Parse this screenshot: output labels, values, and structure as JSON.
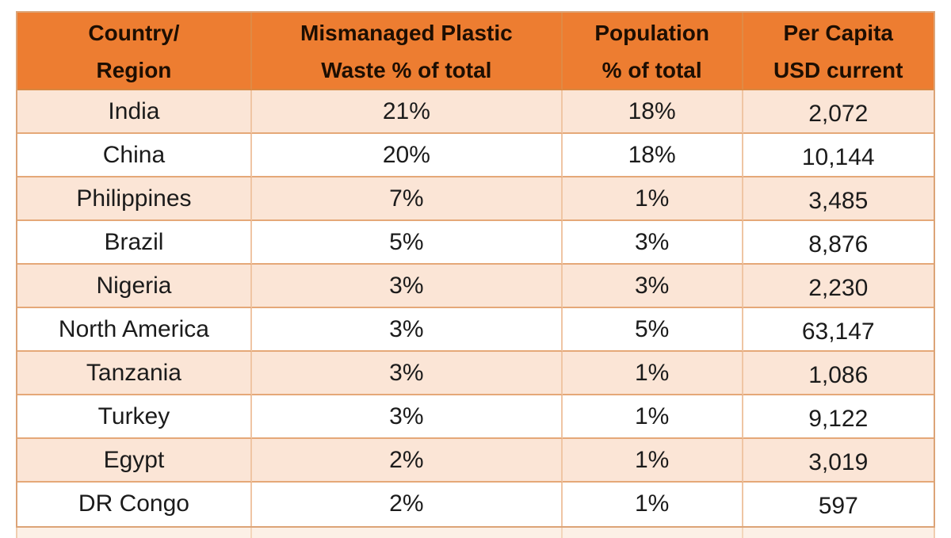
{
  "colors": {
    "header_bg": "#ED7D31",
    "header_text": "#1D0E02",
    "body_text": "#1B1B1B",
    "row_stripe_bg": "#FBE5D6",
    "row_plain_bg": "#FFFFFF",
    "border_horizontal": "#E5A878",
    "border_vertical": "#EFC5A4",
    "outer_border": "#DCA477"
  },
  "table": {
    "headers": [
      {
        "line1": "Country/",
        "line2": "Region"
      },
      {
        "line1": "Mismanaged Plastic",
        "line2": "Waste % of total"
      },
      {
        "line1": "Population",
        "line2": "% of total"
      },
      {
        "line1": "Per Capita",
        "line2": "USD current"
      }
    ],
    "rows": [
      {
        "country": "India",
        "waste": "21%",
        "population": "18%",
        "per_capita": "2,072"
      },
      {
        "country": "China",
        "waste": "20%",
        "population": "18%",
        "per_capita": "10,144"
      },
      {
        "country": "Philippines",
        "waste": "7%",
        "population": "1%",
        "per_capita": "3,485"
      },
      {
        "country": "Brazil",
        "waste": "5%",
        "population": "3%",
        "per_capita": "8,876"
      },
      {
        "country": "Nigeria",
        "waste": "3%",
        "population": "3%",
        "per_capita": "2,230"
      },
      {
        "country": "North America",
        "waste": "3%",
        "population": "5%",
        "per_capita": "63,147"
      },
      {
        "country": "Tanzania",
        "waste": "3%",
        "population": "1%",
        "per_capita": "1,086"
      },
      {
        "country": "Turkey",
        "waste": "3%",
        "population": "1%",
        "per_capita": "9,122"
      },
      {
        "country": "Egypt",
        "waste": "2%",
        "population": "1%",
        "per_capita": "3,019"
      },
      {
        "country": "DR Congo",
        "waste": "2%",
        "population": "1%",
        "per_capita": "597"
      }
    ]
  },
  "chart_data": {
    "type": "table",
    "title": "Mismanaged plastic waste share, population share and per-capita income by country/region",
    "columns": [
      "Country/Region",
      "Mismanaged Plastic Waste % of total",
      "Population % of total",
      "Per Capita USD current"
    ],
    "rows": [
      [
        "India",
        21,
        18,
        2072
      ],
      [
        "China",
        20,
        18,
        10144
      ],
      [
        "Philippines",
        7,
        1,
        3485
      ],
      [
        "Brazil",
        5,
        3,
        8876
      ],
      [
        "Nigeria",
        3,
        3,
        2230
      ],
      [
        "North America",
        3,
        5,
        63147
      ],
      [
        "Tanzania",
        3,
        1,
        1086
      ],
      [
        "Turkey",
        3,
        1,
        9122
      ],
      [
        "Egypt",
        2,
        1,
        3019
      ],
      [
        "DR Congo",
        2,
        1,
        597
      ]
    ],
    "units": {
      "waste": "percent of total",
      "population": "percent of total",
      "per_capita": "USD current"
    },
    "layout": {
      "header_fill": "#ED7D31",
      "row_banding": true
    }
  }
}
